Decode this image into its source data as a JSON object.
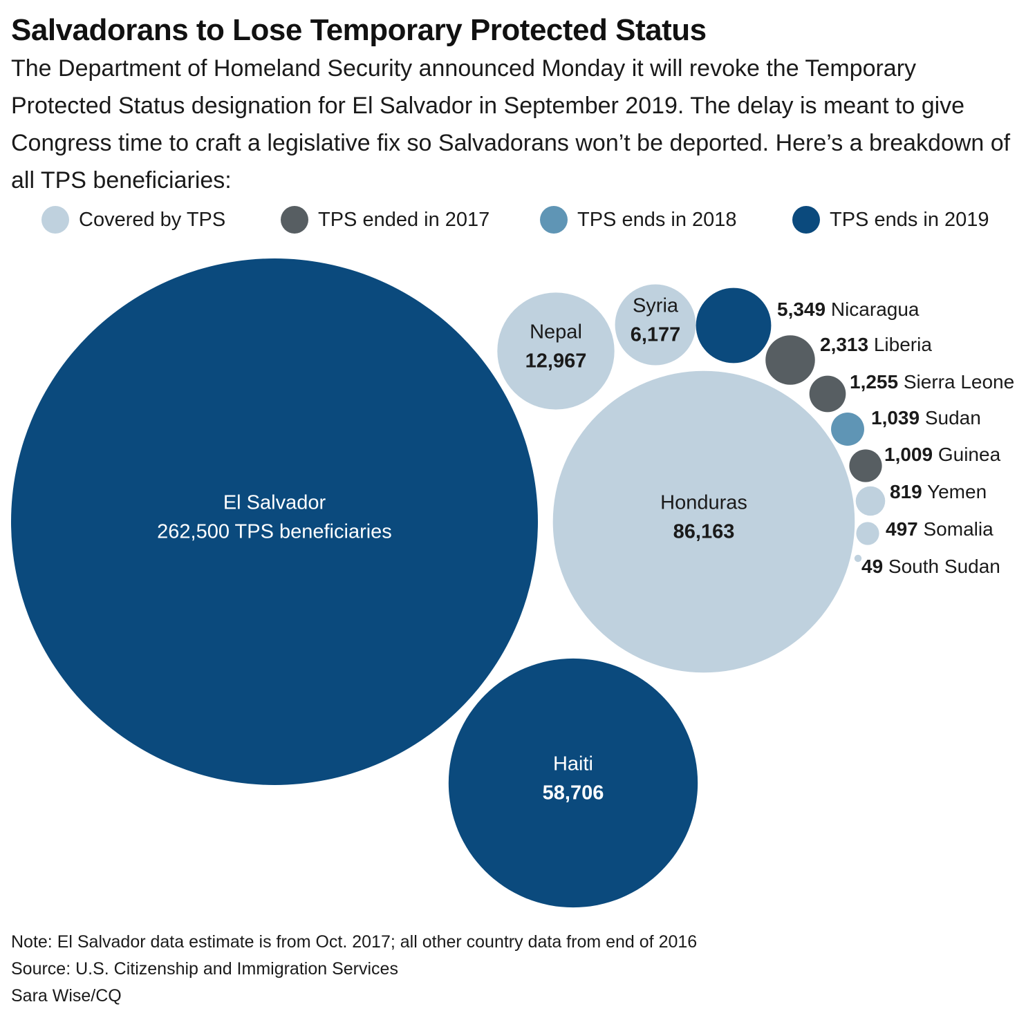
{
  "title": "Salvadorans to Lose Temporary Protected Status",
  "subtitle": "The Department of Homeland Security announced Monday it will revoke the Temporary Protected Status designation for El Salvador in September 2019. The delay is meant to give Congress time to craft a legislative fix so Salvadorans won’t be deported. Here’s a breakdown of all TPS beneficiaries:",
  "colors": {
    "covered": "#bfd1de",
    "ended_2017": "#575e62",
    "ends_2018": "#5f95b5",
    "ends_2019": "#0b4a7d"
  },
  "legend": [
    {
      "label": "Covered by TPS",
      "status": "covered"
    },
    {
      "label": "TPS ended in 2017",
      "status": "ended_2017"
    },
    {
      "label": "TPS ends in 2018",
      "status": "ends_2018"
    },
    {
      "label": "TPS ends in 2019",
      "status": "ends_2019"
    }
  ],
  "chart_data": {
    "type": "bubble",
    "unit": "TPS beneficiaries",
    "items": [
      {
        "country": "El Salvador",
        "value": 262500,
        "value_label": "262,500 TPS beneficiaries",
        "status": "ends_2019"
      },
      {
        "country": "Honduras",
        "value": 86163,
        "value_label": "86,163",
        "status": "covered"
      },
      {
        "country": "Haiti",
        "value": 58706,
        "value_label": "58,706",
        "status": "ends_2019"
      },
      {
        "country": "Nepal",
        "value": 12967,
        "value_label": "12,967",
        "status": "covered"
      },
      {
        "country": "Syria",
        "value": 6177,
        "value_label": "6,177",
        "status": "covered"
      },
      {
        "country": "Nicaragua",
        "value": 5349,
        "value_label": "5,349",
        "status": "ends_2019"
      },
      {
        "country": "Liberia",
        "value": 2313,
        "value_label": "2,313",
        "status": "ended_2017"
      },
      {
        "country": "Sierra Leone",
        "value": 1255,
        "value_label": "1,255",
        "status": "ended_2017"
      },
      {
        "country": "Sudan",
        "value": 1039,
        "value_label": "1,039",
        "status": "ends_2018"
      },
      {
        "country": "Guinea",
        "value": 1009,
        "value_label": "1,009",
        "status": "ended_2017"
      },
      {
        "country": "Yemen",
        "value": 819,
        "value_label": "819",
        "status": "covered"
      },
      {
        "country": "Somalia",
        "value": 497,
        "value_label": "497",
        "status": "covered"
      },
      {
        "country": "South Sudan",
        "value": 49,
        "value_label": "49",
        "status": "covered"
      }
    ]
  },
  "footer": {
    "note": "Note: El Salvador data estimate is from Oct. 2017; all other country data from end of 2016",
    "source": "Source: U.S. Citizenship and Immigration Services",
    "credit": "Sara Wise/CQ"
  }
}
